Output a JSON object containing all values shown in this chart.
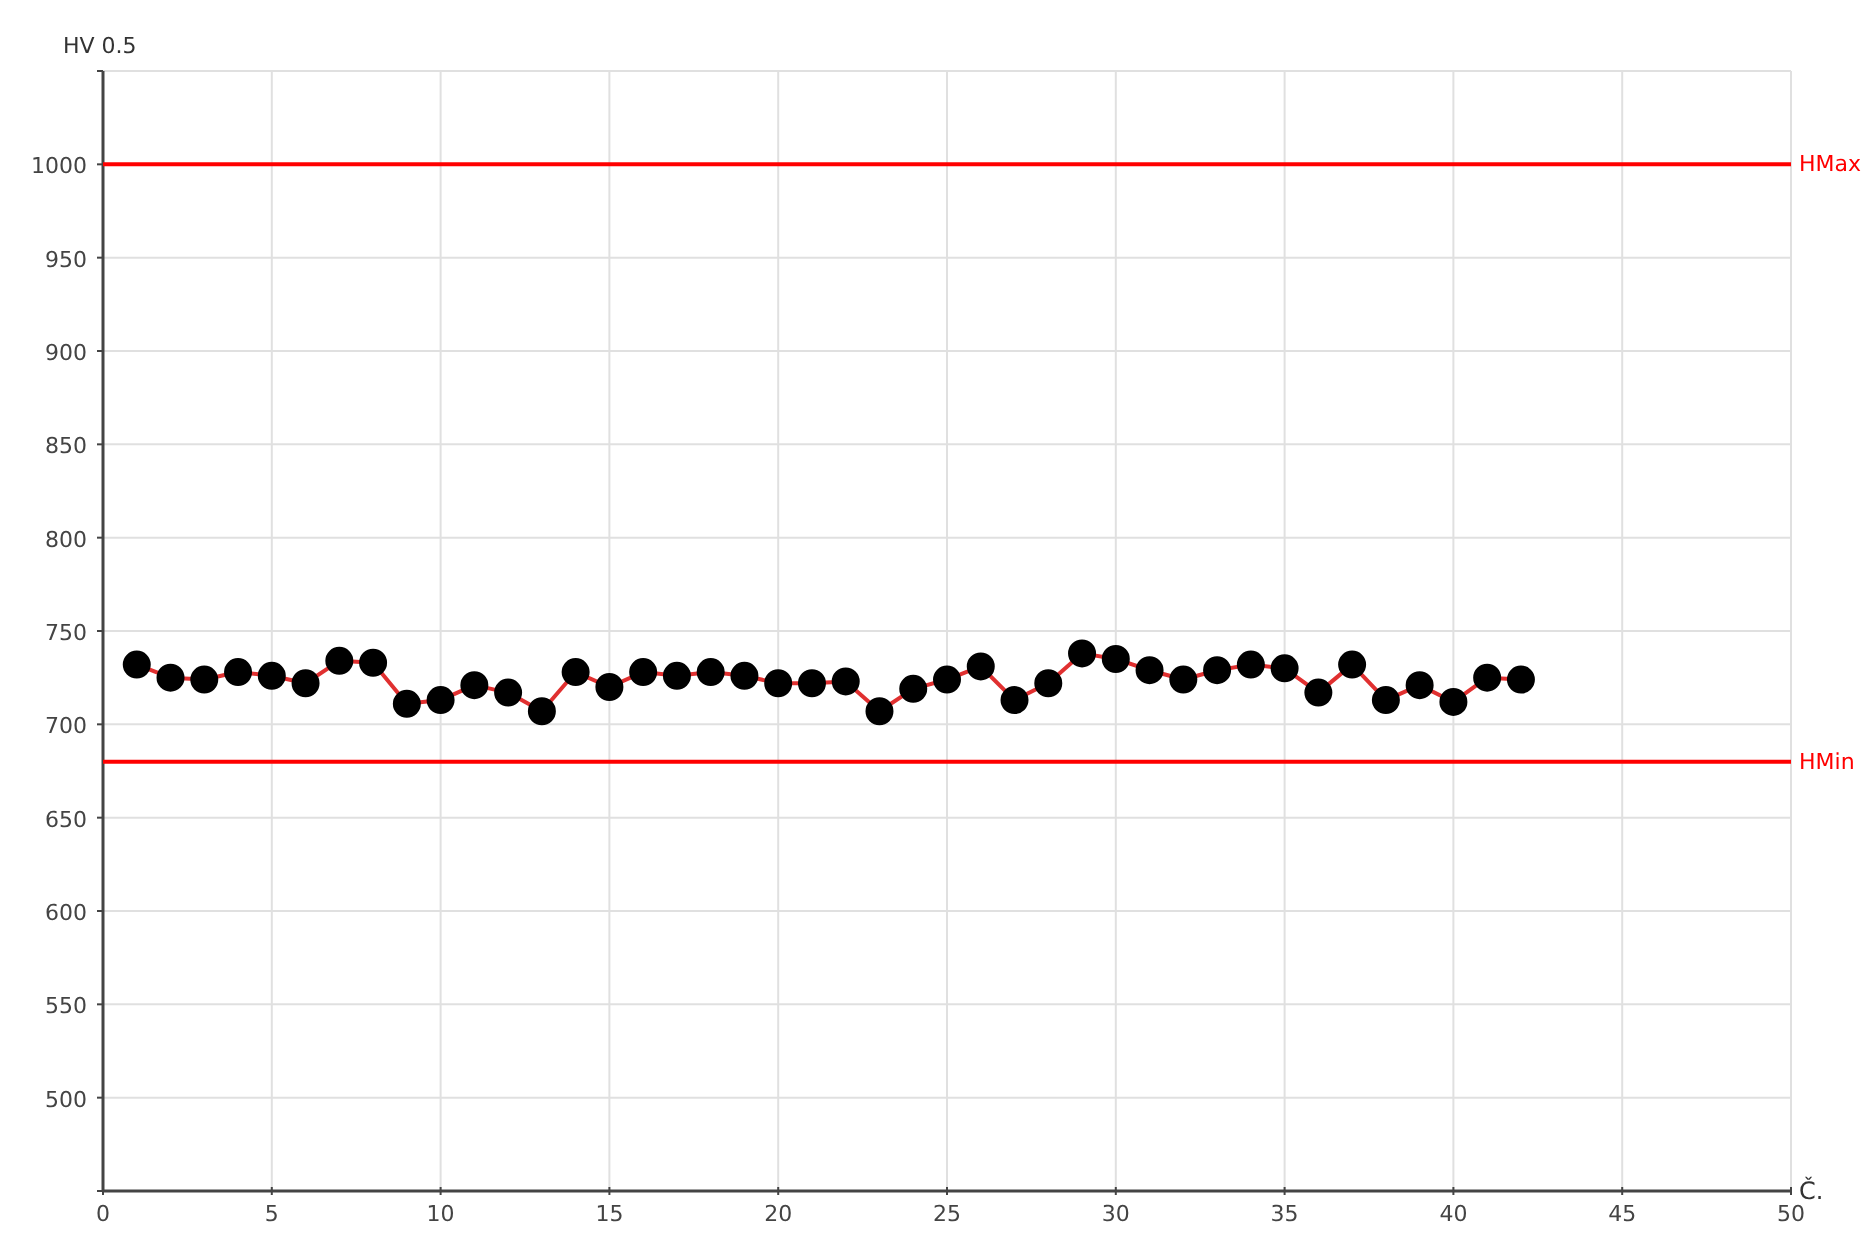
{
  "chart_data": {
    "type": "line",
    "xlabel": "Č.",
    "ylabel": "HV 0.5",
    "x": [
      1,
      2,
      3,
      4,
      5,
      6,
      7,
      8,
      9,
      10,
      11,
      12,
      13,
      14,
      15,
      16,
      17,
      18,
      19,
      20,
      21,
      22,
      23,
      24,
      25,
      26,
      27,
      28,
      29,
      30,
      31,
      32,
      33,
      34,
      35,
      36,
      37,
      38,
      39,
      40,
      41,
      42
    ],
    "series": [
      {
        "color": "#000000",
        "values": [
          732,
          725,
          724,
          728,
          726,
          722,
          734,
          733,
          711,
          713,
          721,
          717,
          707,
          728,
          720,
          728,
          726,
          728,
          726,
          722,
          722,
          723,
          707,
          719,
          724,
          731,
          713,
          722,
          738,
          735,
          729,
          724,
          729,
          732,
          730,
          717,
          732,
          713,
          721,
          712,
          725,
          724
        ]
      }
    ],
    "xlim": [
      0,
      50
    ],
    "xticks": [
      0,
      5,
      10,
      15,
      20,
      25,
      30,
      35,
      40,
      45,
      50
    ],
    "ylim": [
      450,
      1050
    ],
    "yticks": [
      {
        "value": 450,
        "label": null
      },
      500,
      550,
      600,
      650,
      700,
      750,
      800,
      850,
      900,
      950,
      1000,
      {
        "value": 1050,
        "label": null
      }
    ],
    "ref_lines": [
      {
        "axis": "y",
        "value": 1000,
        "label": "HMax",
        "color": "#ff0000"
      },
      {
        "axis": "y",
        "value": 680,
        "label": "HMin",
        "color": "#ff0000"
      }
    ],
    "grid": true,
    "marker": "circle",
    "line_style": "solid"
  }
}
